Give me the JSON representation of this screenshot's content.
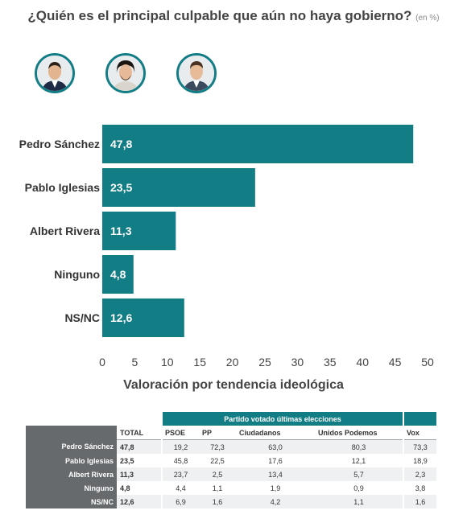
{
  "title": "¿Quién es el principal culpable que aún no haya gobierno?",
  "title_unit": "(en %)",
  "avatars": [
    {
      "icon": "person-avatar-icon",
      "subject": "Pedro Sánchez"
    },
    {
      "icon": "person-avatar-icon",
      "subject": "Pablo Iglesias"
    },
    {
      "icon": "person-avatar-icon",
      "subject": "Albert Rivera"
    }
  ],
  "colors": {
    "accent": "#137d86",
    "row_label_bg": "#666a6c"
  },
  "chart_data": {
    "type": "bar",
    "orientation": "horizontal",
    "categories": [
      "Pedro Sánchez",
      "Pablo Iglesias",
      "Albert Rivera",
      "Ninguno",
      "NS/NC"
    ],
    "values": [
      47.8,
      23.5,
      11.3,
      4.8,
      12.6
    ],
    "value_labels": [
      "47,8",
      "23,5",
      "11,3",
      "4,8",
      "12,6"
    ],
    "xlim": [
      0,
      50
    ],
    "xticks": [
      0,
      5,
      10,
      15,
      20,
      25,
      30,
      35,
      40,
      45,
      50
    ],
    "grid": false,
    "color": "#137d86"
  },
  "table": {
    "subtitle": "Valoración por tendencia ideológica",
    "group_header": "Partido votado últimas elecciones",
    "columns": [
      "TOTAL",
      "PSOE",
      "PP",
      "Ciudadanos",
      "Unidos Podemos",
      "Vox"
    ],
    "rows": [
      {
        "label": "Pedro Sánchez",
        "values": [
          "47,8",
          "19,2",
          "72,3",
          "63,0",
          "80,3",
          "73,3"
        ]
      },
      {
        "label": "Pablo Iglesias",
        "values": [
          "23,5",
          "45,8",
          "22,5",
          "17,6",
          "12,1",
          "18,9"
        ]
      },
      {
        "label": "Albert Rivera",
        "values": [
          "11,3",
          "23,7",
          "2,5",
          "13,4",
          "5,7",
          "2,3"
        ]
      },
      {
        "label": "Ninguno",
        "values": [
          "4,8",
          "4,4",
          "1,1",
          "1,9",
          "0,9",
          "3,8"
        ]
      },
      {
        "label": "NS/NC",
        "values": [
          "12,6",
          "6,9",
          "1,6",
          "4,2",
          "1,1",
          "1,6"
        ]
      }
    ]
  }
}
